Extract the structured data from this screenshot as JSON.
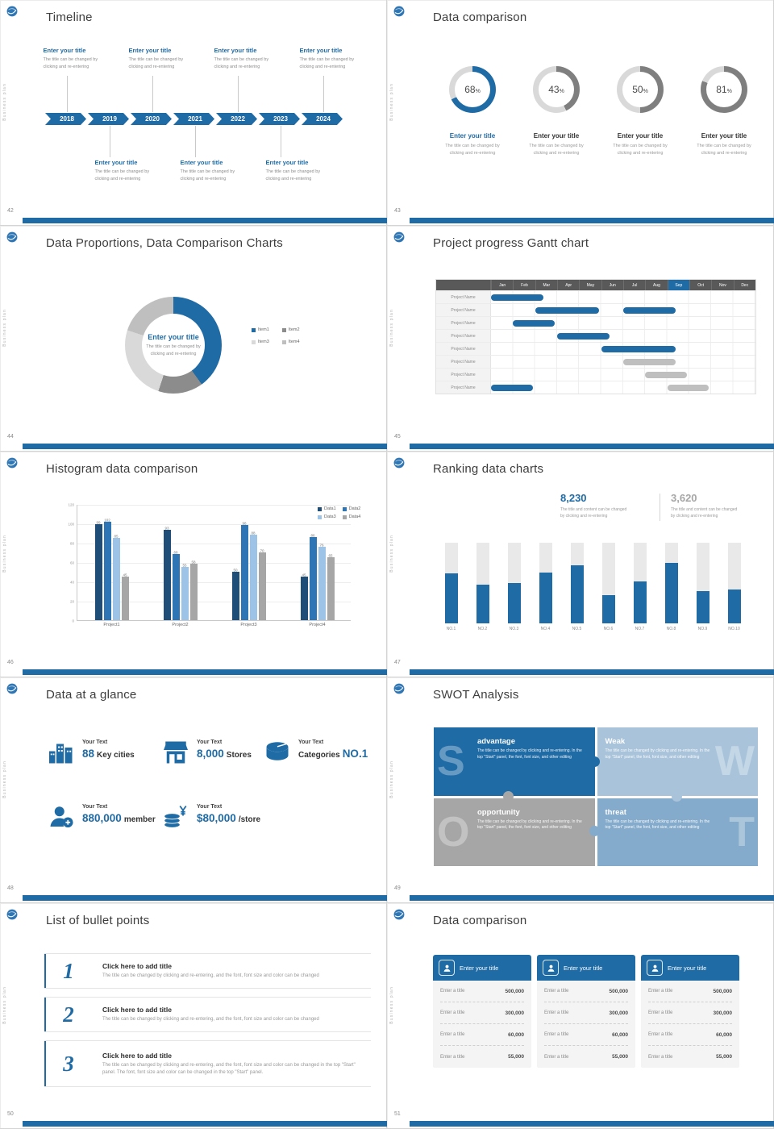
{
  "common": {
    "sidebar_text": "Business plan",
    "accent_color": "#1F6BA5"
  },
  "slides": {
    "timeline": {
      "page": "42",
      "title": "Timeline",
      "years": [
        "2018",
        "2019",
        "2020",
        "2021",
        "2022",
        "2023",
        "2024"
      ],
      "item_title": "Enter your title",
      "item_line1": "The title can be changed by",
      "item_line2": "clicking and re-entering"
    },
    "rings": {
      "page": "43",
      "title": "Data comparison",
      "item_title": "Enter your title",
      "item_line1": "The title can be changed by",
      "item_line2": "clicking and re-entering"
    },
    "donut": {
      "page": "44",
      "title": "Data Proportions, Data Comparison Charts",
      "center_title": "Enter your title",
      "center_line1": "The title can be changed by",
      "center_line2": "clicking and re-entering"
    },
    "gantt": {
      "page": "45",
      "title": "Project progress Gantt chart"
    },
    "histogram": {
      "page": "46",
      "title": "Histogram data comparison"
    },
    "ranking": {
      "page": "47",
      "title": "Ranking data charts",
      "stats": [
        {
          "value": "8,230",
          "color": "#1F6BA5",
          "line1": "The title and content can be changed",
          "line2": "by clicking and re-entering"
        },
        {
          "value": "3,620",
          "color": "#A6A6A6",
          "line1": "The title and content can be changed",
          "line2": "by clicking and re-entering"
        }
      ]
    },
    "glance": {
      "page": "48",
      "title": "Data at a glance",
      "items": [
        {
          "icon": "city-icon",
          "label": "Your Text",
          "pre": "",
          "value": "88",
          "post": "Key cities"
        },
        {
          "icon": "store-icon",
          "label": "Your Text",
          "pre": "",
          "value": "8,000",
          "post": "Stores"
        },
        {
          "icon": "categories-icon",
          "label": "Your Text",
          "pre": "Categories",
          "value": "NO.1",
          "post": ""
        },
        {
          "icon": "member-icon",
          "label": "Your Text",
          "pre": "",
          "value": "880,000",
          "post": "member"
        },
        {
          "icon": "price-icon",
          "label": "Your Text",
          "pre": "",
          "value": "$80,000",
          "post": "/store"
        }
      ]
    },
    "swot": {
      "page": "49",
      "title": "SWOT Analysis",
      "quads": [
        {
          "letter": "S",
          "name": "advantage",
          "color": "#1F6BA5",
          "side": "left",
          "text": "The title can be changed by clicking and re-entering. In the top \"Start\" panel, the font, font size, and other editing"
        },
        {
          "letter": "W",
          "name": "Weak",
          "color": "#A9C4DA",
          "side": "right",
          "text": "The title can be changed by clicking and re-entering. In the top \"Start\" panel, the font, font size, and other editing"
        },
        {
          "letter": "O",
          "name": "opportunity",
          "color": "#A6A6A6",
          "side": "left",
          "text": "The title can be changed by clicking and re-entering. In the top \"Start\" panel, the font, font size, and other editing"
        },
        {
          "letter": "T",
          "name": "threat",
          "color": "#84ABCB",
          "side": "right",
          "text": "The title can be changed by clicking and re-entering. In the top \"Start\" panel, the font, font size, and other editing"
        }
      ]
    },
    "bullets": {
      "page": "50",
      "title": "List of bullet points",
      "items": [
        {
          "num": "1",
          "heading": "Click here to add title",
          "text": "The title can be changed by clicking and re-entering, and the font, font size and color can be changed"
        },
        {
          "num": "2",
          "heading": "Click here to add title",
          "text": "The title can be changed by clicking and re-entering, and the font, font size and color can be changed"
        },
        {
          "num": "3",
          "heading": "Click here to add title",
          "text": "The title can be changed by clicking and re-entering, and the font, font size and color can be changed in the top \"Start\" panel. The font, font size and color can be changed in the top \"Start\" panel."
        }
      ]
    },
    "cards": {
      "page": "51",
      "title": "Data comparison",
      "cards": [
        {
          "icon": "user-icon",
          "header": "Enter your title",
          "rows": [
            {
              "label": "Enter a title",
              "value": "500,000"
            },
            {
              "label": "Enter a title",
              "value": "300,000"
            },
            {
              "label": "Enter a title",
              "value": "60,000"
            },
            {
              "label": "Enter a title",
              "value": "55,000"
            }
          ]
        },
        {
          "icon": "user-icon",
          "header": "Enter your title",
          "rows": [
            {
              "label": "Enter a title",
              "value": "500,000"
            },
            {
              "label": "Enter a title",
              "value": "300,000"
            },
            {
              "label": "Enter a title",
              "value": "60,000"
            },
            {
              "label": "Enter a title",
              "value": "55,000"
            }
          ]
        },
        {
          "icon": "user-icon",
          "header": "Enter your title",
          "rows": [
            {
              "label": "Enter a title",
              "value": "500,000"
            },
            {
              "label": "Enter a title",
              "value": "300,000"
            },
            {
              "label": "Enter a title",
              "value": "60,000"
            },
            {
              "label": "Enter a title",
              "value": "55,000"
            }
          ]
        }
      ]
    }
  },
  "chart_data": [
    {
      "id": "progress-rings",
      "type": "pie",
      "title": "Data comparison",
      "values": [
        68,
        43,
        50,
        81
      ],
      "unit": "%",
      "colors": [
        "#1F6BA5",
        "#7F7F7F",
        "#7F7F7F",
        "#7F7F7F"
      ],
      "track_color": "#D9D9D9"
    },
    {
      "id": "proportion-donut",
      "type": "pie",
      "title": "Data Proportions, Data Comparison Charts",
      "labels": [
        "Item1",
        "Item2",
        "Item3",
        "Item4"
      ],
      "values": [
        40,
        15,
        25,
        20
      ],
      "colors": [
        "#1F6BA5",
        "#8C8C8C",
        "#D9D9D9",
        "#BFBFBF"
      ],
      "legend_position": "right"
    },
    {
      "id": "gantt",
      "type": "gantt",
      "title": "Project progress Gantt chart",
      "months": [
        "Jan",
        "Feb",
        "Mar",
        "Apr",
        "May",
        "Jun",
        "Jul",
        "Aug",
        "Sep",
        "Oct",
        "Nov",
        "Dec"
      ],
      "highlight_month": 8,
      "row_label": "Project Name",
      "rows": [
        {
          "bars": [
            {
              "start": 0,
              "span": 2.5,
              "color": "#1F6BA5"
            }
          ]
        },
        {
          "bars": [
            {
              "start": 2,
              "span": 3,
              "color": "#1F6BA5"
            },
            {
              "start": 6,
              "span": 2.5,
              "color": "#1F6BA5"
            }
          ]
        },
        {
          "bars": [
            {
              "start": 1,
              "span": 2,
              "color": "#1F6BA5"
            }
          ]
        },
        {
          "bars": [
            {
              "start": 3,
              "span": 2.5,
              "color": "#1F6BA5"
            }
          ]
        },
        {
          "bars": [
            {
              "start": 5,
              "span": 3.5,
              "color": "#1F6BA5"
            }
          ]
        },
        {
          "bars": [
            {
              "start": 6,
              "span": 2.5,
              "color": "#BFBFBF"
            }
          ]
        },
        {
          "bars": [
            {
              "start": 7,
              "span": 2,
              "color": "#BFBFBF"
            }
          ]
        },
        {
          "bars": [
            {
              "start": 0,
              "span": 2,
              "color": "#1F6BA5"
            },
            {
              "start": 8,
              "span": 2,
              "color": "#BFBFBF"
            }
          ]
        }
      ]
    },
    {
      "id": "histogram",
      "type": "bar",
      "title": "Histogram data comparison",
      "categories": [
        "Project1",
        "Project2",
        "Project3",
        "Project4"
      ],
      "series": [
        {
          "name": "Data1",
          "color": "#1F4E79",
          "values": [
            99,
            93,
            50,
            45
          ]
        },
        {
          "name": "Data2",
          "color": "#2E75B6",
          "values": [
            102,
            68,
            98,
            86
          ]
        },
        {
          "name": "Data3",
          "color": "#9DC3E6",
          "values": [
            85,
            55,
            88,
            76
          ]
        },
        {
          "name": "Data4",
          "color": "#A6A6A6",
          "values": [
            45,
            58,
            70,
            65
          ]
        }
      ],
      "ylim": [
        0,
        120
      ],
      "yticks": [
        0,
        20,
        40,
        60,
        80,
        100,
        120
      ],
      "grid": true,
      "legend_position": "top-right"
    },
    {
      "id": "ranking",
      "type": "bar",
      "title": "Ranking data charts",
      "categories": [
        "NO.1",
        "NO.2",
        "NO.3",
        "NO.4",
        "NO.5",
        "NO.6",
        "NO.7",
        "NO.8",
        "NO.9",
        "NO.10"
      ],
      "values": [
        62,
        48,
        50,
        63,
        72,
        35,
        52,
        75,
        40,
        42
      ],
      "ylim": [
        0,
        100
      ],
      "bar_color": "#1F6BA5",
      "track_color": "#E9E9E9"
    }
  ]
}
